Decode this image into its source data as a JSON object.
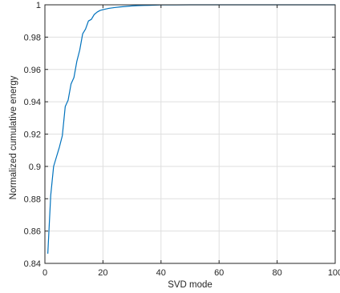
{
  "chart_data": {
    "type": "line",
    "title": "",
    "xlabel": "SVD mode",
    "ylabel": "Normalized cumulative energy",
    "xlim": [
      0,
      100
    ],
    "ylim": [
      0.84,
      1.0
    ],
    "x_ticks": [
      0,
      20,
      40,
      60,
      80,
      100
    ],
    "y_ticks": [
      0.84,
      0.86,
      0.88,
      0.9,
      0.92,
      0.94,
      0.96,
      0.98,
      1
    ],
    "x_tick_labels": [
      "0",
      "20",
      "40",
      "60",
      "80",
      "100"
    ],
    "y_tick_labels": [
      "0.84",
      "0.86",
      "0.88",
      "0.9",
      "0.92",
      "0.94",
      "0.96",
      "0.98",
      "1"
    ],
    "grid": true,
    "series": [
      {
        "color": "#0072bd",
        "x": [
          1,
          2,
          3,
          4,
          5,
          6,
          7,
          8,
          9,
          10,
          11,
          12,
          13,
          14,
          15,
          16,
          17,
          18,
          19,
          20,
          22,
          24,
          26,
          28,
          30,
          32,
          34,
          36,
          38,
          40,
          45,
          50,
          60,
          70,
          80,
          90,
          100
        ],
        "y": [
          0.846,
          0.882,
          0.9,
          0.906,
          0.912,
          0.919,
          0.937,
          0.941,
          0.951,
          0.955,
          0.965,
          0.972,
          0.982,
          0.985,
          0.99,
          0.991,
          0.994,
          0.9955,
          0.9965,
          0.997,
          0.9978,
          0.9983,
          0.9987,
          0.999,
          0.9993,
          0.9995,
          0.9996,
          0.9997,
          0.9998,
          0.9999,
          0.99995,
          1.0,
          1.0,
          1.0,
          1.0,
          1.0,
          1.0
        ]
      }
    ]
  }
}
